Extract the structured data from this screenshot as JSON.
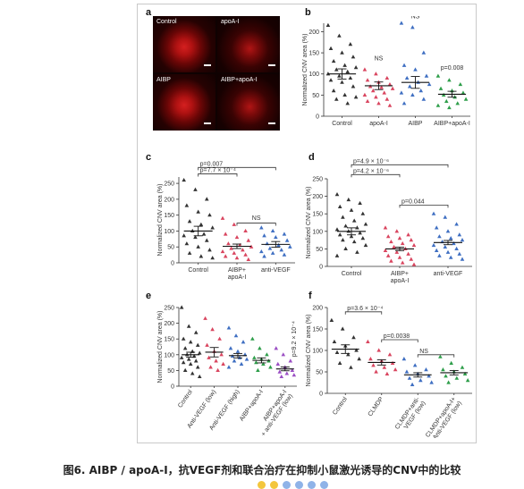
{
  "panels": {
    "a": {
      "letter": "a",
      "tiles": [
        "Control",
        "apoA-I",
        "AIBP",
        "AIBP+apoA-I"
      ]
    },
    "b": {
      "letter": "b"
    },
    "c": {
      "letter": "c"
    },
    "d": {
      "letter": "d"
    },
    "e": {
      "letter": "e"
    },
    "f": {
      "letter": "f"
    }
  },
  "caption": "图6. AIBP / apoA-I，抗VEGF剂和联合治疗在抑制小鼠激光诱导的CNV中的比较",
  "decor_dot_colors": [
    "#f3c63d",
    "#f3c63d",
    "#8fb3e8",
    "#8fb3e8",
    "#8fb3e8",
    "#8fb3e8"
  ],
  "chart_data": [
    {
      "panel": "b",
      "type": "scatter",
      "ylabel": "Normalized CNV area (%)",
      "ylim": [
        0,
        220
      ],
      "yticks": [
        0,
        50,
        100,
        150,
        200
      ],
      "categories": [
        "Control",
        "apoA-I",
        "AIBP",
        "AIBP+apoA-I"
      ],
      "rotate_xticks": false,
      "series": [
        {
          "category": "Control",
          "marker": "triangle",
          "color": "#333333",
          "mean": 100,
          "sem": 12,
          "values": [
            215,
            190,
            170,
            160,
            150,
            140,
            130,
            120,
            115,
            110,
            105,
            100,
            95,
            90,
            85,
            80,
            70,
            60,
            50,
            45,
            40,
            30
          ]
        },
        {
          "category": "apoA-I",
          "marker": "triangle",
          "color": "#d9455f",
          "mean": 72,
          "sem": 9,
          "values": [
            110,
            100,
            90,
            85,
            80,
            75,
            70,
            68,
            65,
            60,
            55,
            50,
            45,
            40,
            35,
            30,
            25
          ]
        },
        {
          "category": "AIBP",
          "marker": "triangle",
          "color": "#3f6fc2",
          "mean": 80,
          "sem": 14,
          "values": [
            220,
            210,
            150,
            120,
            110,
            95,
            90,
            80,
            75,
            70,
            60,
            55,
            50,
            40,
            30
          ]
        },
        {
          "category": "AIBP+apoA-I",
          "marker": "triangle",
          "color": "#2e9e4a",
          "mean": 52,
          "sem": 7,
          "values": [
            95,
            85,
            75,
            65,
            60,
            55,
            50,
            45,
            40,
            35,
            30,
            25,
            20
          ]
        }
      ],
      "annotations": [
        {
          "text": "NS",
          "at": "apoA-I",
          "y": 132
        },
        {
          "text": "NS",
          "at": "AIBP",
          "y": 232
        },
        {
          "text": "p=0.008",
          "at": "AIBP+apoA-I",
          "y": 110
        }
      ],
      "brackets": []
    },
    {
      "panel": "c",
      "type": "scatter",
      "ylabel": "Normalized CNV area (%)",
      "ylim": [
        0,
        270
      ],
      "yticks": [
        0,
        50,
        100,
        150,
        200,
        250
      ],
      "categories": [
        "Control",
        "AIBP+\napoA-I",
        "anti-VEGF"
      ],
      "rotate_xticks": false,
      "series": [
        {
          "category": "Control",
          "marker": "triangle",
          "color": "#333333",
          "mean": 100,
          "sem": 15,
          "values": [
            260,
            230,
            200,
            180,
            160,
            150,
            130,
            120,
            110,
            100,
            90,
            85,
            80,
            70,
            60,
            50,
            40,
            30,
            20,
            15
          ]
        },
        {
          "category": "AIBP+apoA-I",
          "marker": "triangle",
          "color": "#d9455f",
          "mean": 52,
          "sem": 7,
          "values": [
            140,
            120,
            100,
            90,
            80,
            70,
            60,
            55,
            50,
            45,
            40,
            35,
            30,
            25,
            20,
            15,
            10
          ]
        },
        {
          "category": "anti-VEGF",
          "marker": "triangle",
          "color": "#3f6fc2",
          "mean": 58,
          "sem": 9,
          "values": [
            110,
            100,
            90,
            85,
            80,
            70,
            60,
            55,
            50,
            45,
            40,
            35,
            30,
            25,
            20
          ]
        }
      ],
      "annotations": [
        {
          "text": "NS",
          "at": "AIBP+apoA-I|anti-VEGF",
          "y": 135
        }
      ],
      "brackets": [
        {
          "text": "p=7.7 × 10⁻⁴",
          "from": "Control",
          "to": "AIBP+apoA-I",
          "y": 280
        },
        {
          "text": "p=0.007",
          "from": "Control",
          "to": "anti-VEGF",
          "y": 300
        },
        {
          "text": "",
          "from": "AIBP+apoA-I",
          "to": "anti-VEGF",
          "y": 125
        }
      ]
    },
    {
      "panel": "d",
      "type": "scatter",
      "ylabel": "Normalized CNV area (%)",
      "ylim": [
        0,
        250
      ],
      "yticks": [
        0,
        50,
        100,
        150,
        200,
        250
      ],
      "categories": [
        "Control",
        "AIBP+\napoA-I",
        "anti-VEGF"
      ],
      "rotate_xticks": false,
      "series": [
        {
          "category": "Control",
          "marker": "triangle",
          "color": "#333333",
          "mean": 100,
          "sem": 10,
          "values": [
            205,
            190,
            180,
            170,
            160,
            150,
            140,
            130,
            120,
            115,
            110,
            105,
            100,
            95,
            90,
            85,
            80,
            75,
            70,
            60,
            50,
            40,
            30
          ]
        },
        {
          "category": "AIBP+apoA-I",
          "marker": "triangle",
          "color": "#d9455f",
          "mean": 50,
          "sem": 5,
          "values": [
            110,
            100,
            90,
            85,
            80,
            75,
            70,
            65,
            60,
            55,
            50,
            45,
            40,
            35,
            30,
            25,
            20,
            15,
            10,
            5
          ]
        },
        {
          "category": "anti-VEGF",
          "marker": "triangle",
          "color": "#3f6fc2",
          "mean": 68,
          "sem": 6,
          "values": [
            150,
            140,
            120,
            110,
            100,
            90,
            85,
            80,
            75,
            70,
            65,
            60,
            55,
            50,
            45,
            40,
            35,
            30,
            25,
            20
          ]
        }
      ],
      "annotations": [],
      "brackets": [
        {
          "text": "p=4.2 × 10⁻⁶",
          "from": "Control",
          "to": "AIBP+apoA-I",
          "y": 262
        },
        {
          "text": "p=4.9 × 10⁻⁶",
          "from": "Control",
          "to": "anti-VEGF",
          "y": 290
        },
        {
          "text": "p=0.044",
          "from": "AIBP+apoA-I",
          "to": "anti-VEGF",
          "y": 175
        }
      ]
    },
    {
      "panel": "e",
      "type": "scatter",
      "ylabel": "Normalized CNV area (%)",
      "ylim": [
        0,
        250
      ],
      "yticks": [
        0,
        50,
        100,
        150,
        200,
        250
      ],
      "categories": [
        "Control",
        "Anti-VEGF (low)",
        "Anti-VEGF (high)",
        "AIBP+apoA-I",
        "AIBP+apoA-I\n+ anti-VEGF (low)"
      ],
      "rotate_xticks": true,
      "series": [
        {
          "category": "Control",
          "marker": "triangle",
          "color": "#333333",
          "mean": 100,
          "sem": 8,
          "values": [
            250,
            190,
            170,
            150,
            140,
            130,
            120,
            110,
            105,
            100,
            95,
            90,
            85,
            80,
            75,
            70,
            60,
            50,
            40,
            30
          ]
        },
        {
          "category": "Anti-VEGF (low)",
          "marker": "triangle",
          "color": "#d9455f",
          "mean": 108,
          "sem": 15,
          "values": [
            215,
            180,
            150,
            130,
            110,
            100,
            90,
            80,
            70,
            60,
            50
          ]
        },
        {
          "category": "Anti-VEGF (high)",
          "marker": "triangle",
          "color": "#3f6fc2",
          "mean": 97,
          "sem": 7,
          "values": [
            185,
            160,
            140,
            120,
            110,
            100,
            95,
            90,
            85,
            80,
            70,
            60
          ]
        },
        {
          "category": "AIBP+apoA-I",
          "marker": "triangle",
          "color": "#2e9e4a",
          "mean": 82,
          "sem": 8,
          "values": [
            150,
            120,
            100,
            90,
            85,
            80,
            75,
            70,
            60,
            50
          ]
        },
        {
          "category": "AIBP+apoA-I + anti-VEGF (low)",
          "marker": "triangle",
          "color": "#9b4fc4",
          "mean": 55,
          "sem": 6,
          "values": [
            120,
            100,
            80,
            70,
            60,
            50,
            45,
            40,
            35,
            30
          ]
        }
      ],
      "annotations": [
        {
          "text": "p=9.2 × 10⁻⁴",
          "at": "AIBP+apoA-I + anti-VEGF (low)",
          "y": 150,
          "vertical": true
        }
      ],
      "brackets": []
    },
    {
      "panel": "f",
      "type": "scatter",
      "ylabel": "Normalized CNV area (%)",
      "ylim": [
        0,
        200
      ],
      "yticks": [
        0,
        50,
        100,
        150,
        200
      ],
      "categories": [
        "Control",
        "CLMDP",
        "CLMDP+anti-\nVEGF (low)",
        "CLMDP+apoA-I+\nAIBP+Anti-VEGF (low)"
      ],
      "rotate_xticks": true,
      "series": [
        {
          "category": "Control",
          "marker": "triangle",
          "color": "#333333",
          "mean": 103,
          "sem": 10,
          "values": [
            170,
            150,
            130,
            120,
            110,
            100,
            95,
            90,
            80,
            70,
            60
          ]
        },
        {
          "category": "CLMDP",
          "marker": "triangle",
          "color": "#d9455f",
          "mean": 72,
          "sem": 6,
          "values": [
            120,
            100,
            90,
            80,
            75,
            70,
            65,
            60,
            55,
            50,
            45
          ]
        },
        {
          "category": "CLMDP+anti-VEGF (low)",
          "marker": "triangle",
          "color": "#3f6fc2",
          "mean": 43,
          "sem": 5,
          "values": [
            80,
            65,
            55,
            50,
            45,
            40,
            35,
            30,
            25,
            20
          ]
        },
        {
          "category": "CLMDP+apoA-I+AIBP+Anti-VEGF (low)",
          "marker": "triangle",
          "color": "#2e9e4a",
          "mean": 48,
          "sem": 5,
          "values": [
            85,
            70,
            60,
            55,
            50,
            45,
            40,
            35,
            30,
            25
          ]
        }
      ],
      "annotations": [],
      "brackets": [
        {
          "text": "p=3.6 × 10⁻⁴",
          "from": "Control",
          "to": "CLMDP",
          "y": 190
        },
        {
          "text": "p=0.0038",
          "from": "CLMDP",
          "to": "CLMDP+anti-VEGF (low)",
          "y": 125
        },
        {
          "text": "NS",
          "from": "CLMDP+anti-VEGF (low)",
          "to": "CLMDP+apoA-I+AIBP+Anti-VEGF (low)",
          "y": 90
        }
      ]
    }
  ]
}
